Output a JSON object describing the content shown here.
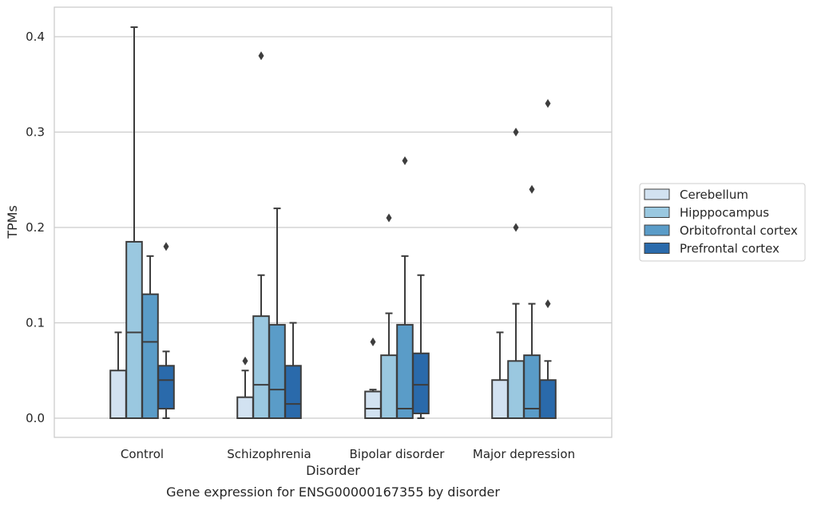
{
  "chart_data": {
    "type": "box",
    "title": "Gene expression for ENSG00000167355 by disorder",
    "xlabel": "Disorder",
    "ylabel": "TPMs",
    "ylim": [
      -0.02,
      0.43
    ],
    "yticks": [
      0.0,
      0.1,
      0.2,
      0.3,
      0.4
    ],
    "ytick_labels": [
      "0.0",
      "0.1",
      "0.2",
      "0.3",
      "0.4"
    ],
    "grid": "horizontal",
    "legend_position": "right",
    "categories": [
      "Control",
      "Schizophrenia",
      "Bipolar disorder",
      "Major depression"
    ],
    "series": [
      {
        "name": "Cerebellum",
        "color": "#d2e2f1",
        "boxes": [
          {
            "whislo": 0.0,
            "q1": 0.0,
            "med": 0.0,
            "q3": 0.05,
            "whishi": 0.09,
            "fliers": []
          },
          {
            "whislo": 0.0,
            "q1": 0.0,
            "med": 0.0,
            "q3": 0.022,
            "whishi": 0.05,
            "fliers": [
              0.06
            ]
          },
          {
            "whislo": 0.0,
            "q1": 0.0,
            "med": 0.01,
            "q3": 0.028,
            "whishi": 0.03,
            "fliers": [
              0.08
            ]
          },
          {
            "whislo": 0.0,
            "q1": 0.0,
            "med": 0.0,
            "q3": 0.04,
            "whishi": 0.09,
            "fliers": []
          }
        ]
      },
      {
        "name": "Hipppocampus",
        "color": "#9ac8e0",
        "boxes": [
          {
            "whislo": 0.0,
            "q1": 0.0,
            "med": 0.09,
            "q3": 0.185,
            "whishi": 0.41,
            "fliers": []
          },
          {
            "whislo": 0.0,
            "q1": 0.0,
            "med": 0.035,
            "q3": 0.107,
            "whishi": 0.15,
            "fliers": [
              0.38
            ]
          },
          {
            "whislo": 0.0,
            "q1": 0.0,
            "med": 0.0,
            "q3": 0.066,
            "whishi": 0.11,
            "fliers": [
              0.21
            ]
          },
          {
            "whislo": 0.0,
            "q1": 0.0,
            "med": 0.0,
            "q3": 0.06,
            "whishi": 0.12,
            "fliers": [
              0.2,
              0.3
            ]
          }
        ]
      },
      {
        "name": "Orbitofrontal cortex",
        "color": "#5a9cc8",
        "boxes": [
          {
            "whislo": 0.0,
            "q1": 0.0,
            "med": 0.08,
            "q3": 0.13,
            "whishi": 0.17,
            "fliers": []
          },
          {
            "whislo": 0.0,
            "q1": 0.0,
            "med": 0.03,
            "q3": 0.098,
            "whishi": 0.22,
            "fliers": []
          },
          {
            "whislo": 0.0,
            "q1": 0.0,
            "med": 0.01,
            "q3": 0.098,
            "whishi": 0.17,
            "fliers": [
              0.27
            ]
          },
          {
            "whislo": 0.0,
            "q1": 0.0,
            "med": 0.01,
            "q3": 0.066,
            "whishi": 0.12,
            "fliers": [
              0.24
            ]
          }
        ]
      },
      {
        "name": "Prefrontal cortex",
        "color": "#2a6aab",
        "boxes": [
          {
            "whislo": 0.0,
            "q1": 0.01,
            "med": 0.04,
            "q3": 0.055,
            "whishi": 0.07,
            "fliers": [
              0.18
            ]
          },
          {
            "whislo": 0.0,
            "q1": 0.0,
            "med": 0.015,
            "q3": 0.055,
            "whishi": 0.1,
            "fliers": []
          },
          {
            "whislo": 0.0,
            "q1": 0.005,
            "med": 0.035,
            "q3": 0.068,
            "whishi": 0.15,
            "fliers": []
          },
          {
            "whislo": 0.0,
            "q1": 0.0,
            "med": 0.0,
            "q3": 0.04,
            "whishi": 0.06,
            "fliers": [
              0.12,
              0.33
            ]
          }
        ]
      }
    ]
  }
}
